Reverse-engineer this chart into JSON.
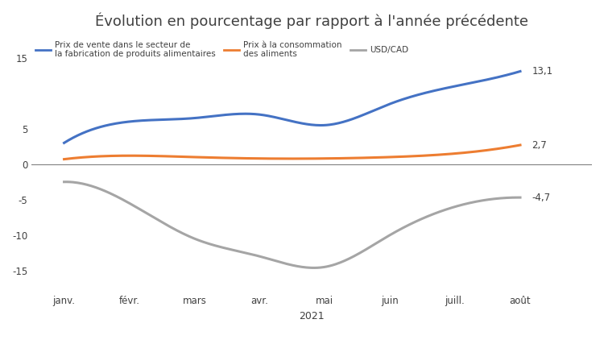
{
  "title": "Évolution en pourcentage par rapport à l'année précédente",
  "xlabel": "2021",
  "categories": [
    "janv.",
    "févr.",
    "mars",
    "avr.",
    "mai",
    "juin",
    "juill.",
    "août"
  ],
  "blue_series": [
    3.0,
    6.0,
    6.5,
    7.0,
    5.5,
    8.5,
    11.0,
    13.1
  ],
  "orange_series": [
    0.7,
    1.2,
    1.0,
    0.8,
    0.8,
    1.0,
    1.5,
    2.7
  ],
  "gray_series": [
    -2.5,
    -5.5,
    -10.5,
    -13.0,
    -14.5,
    -10.0,
    -6.0,
    -4.7
  ],
  "blue_label_line1": "Prix de vente dans le secteur de",
  "blue_label_line2": "la fabrication de produits alimentaires",
  "orange_label_line1": "Prix à la consommation",
  "orange_label_line2": "des aliments",
  "gray_label": "USD/CAD",
  "blue_color": "#4472C4",
  "orange_color": "#ED7D31",
  "gray_color": "#A5A5A5",
  "end_label_color": "#404040",
  "end_labels": [
    "13,1",
    "2,7",
    "-4,7"
  ],
  "ylim": [
    -18,
    18
  ],
  "yticks": [
    15,
    5,
    0,
    -5,
    -10,
    -15
  ],
  "background_color": "#FFFFFF",
  "text_color": "#404040",
  "title_color": "#404040",
  "zeroline_color": "#808080",
  "title_fontsize": 13,
  "tick_fontsize": 8.5,
  "legend_fontsize": 7.5
}
